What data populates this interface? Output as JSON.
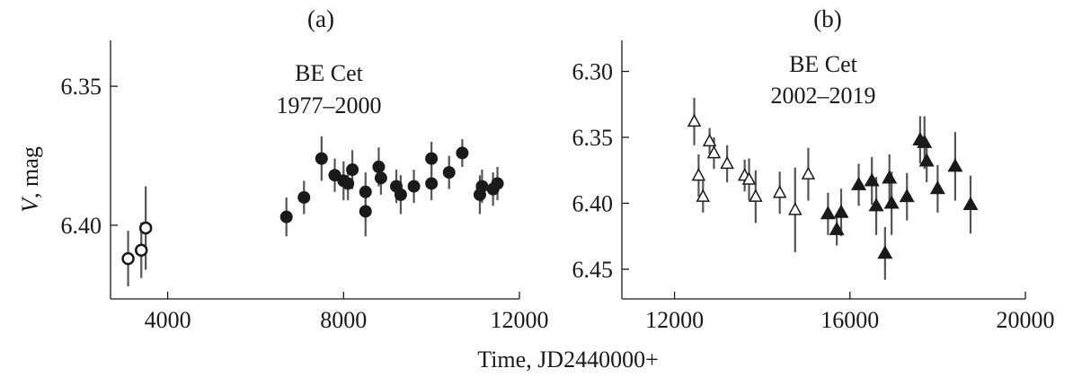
{
  "figure": {
    "xlabel": "Time, JD2440000+",
    "ylabel_var": "V",
    "ylabel_unit": ", mag"
  },
  "chart_data": [
    {
      "type": "scatter",
      "panel_label": "(a)",
      "annotation": [
        "BE Cet",
        "1977–2000"
      ],
      "xlim": [
        2700,
        12000
      ],
      "ylim": [
        6.4265,
        6.3335
      ],
      "y_inverted": true,
      "xticks": [
        4000,
        8000,
        12000
      ],
      "xtick_labels": [
        "4000",
        "8000",
        "12000"
      ],
      "yticks": [
        6.35,
        6.4
      ],
      "ytick_labels": [
        "6.35",
        "6.40"
      ],
      "grid": false,
      "series": [
        {
          "marker": "open-circle",
          "points": [
            {
              "x": 3100,
              "y": 6.412,
              "err": 0.01
            },
            {
              "x": 3400,
              "y": 6.409,
              "err": 0.01
            },
            {
              "x": 3500,
              "y": 6.401,
              "err": 0.015
            }
          ]
        },
        {
          "marker": "filled-circle",
          "points": [
            {
              "x": 6700,
              "y": 6.397,
              "err": 0.007
            },
            {
              "x": 7100,
              "y": 6.39,
              "err": 0.006
            },
            {
              "x": 7500,
              "y": 6.376,
              "err": 0.008
            },
            {
              "x": 7800,
              "y": 6.382,
              "err": 0.006
            },
            {
              "x": 8000,
              "y": 6.384,
              "err": 0.007
            },
            {
              "x": 8100,
              "y": 6.385,
              "err": 0.006
            },
            {
              "x": 8200,
              "y": 6.38,
              "err": 0.007
            },
            {
              "x": 8500,
              "y": 6.388,
              "err": 0.007
            },
            {
              "x": 8500,
              "y": 6.395,
              "err": 0.009
            },
            {
              "x": 8800,
              "y": 6.379,
              "err": 0.007
            },
            {
              "x": 8850,
              "y": 6.383,
              "err": 0.006
            },
            {
              "x": 9200,
              "y": 6.386,
              "err": 0.006
            },
            {
              "x": 9300,
              "y": 6.389,
              "err": 0.007
            },
            {
              "x": 9600,
              "y": 6.386,
              "err": 0.006
            },
            {
              "x": 10000,
              "y": 6.376,
              "err": 0.006
            },
            {
              "x": 10000,
              "y": 6.385,
              "err": 0.006
            },
            {
              "x": 10400,
              "y": 6.381,
              "err": 0.006
            },
            {
              "x": 10700,
              "y": 6.374,
              "err": 0.005
            },
            {
              "x": 11100,
              "y": 6.389,
              "err": 0.007
            },
            {
              "x": 11150,
              "y": 6.386,
              "err": 0.006
            },
            {
              "x": 11400,
              "y": 6.387,
              "err": 0.006
            },
            {
              "x": 11500,
              "y": 6.385,
              "err": 0.006
            }
          ]
        }
      ]
    },
    {
      "type": "scatter",
      "panel_label": "(b)",
      "annotation": [
        "BE Cet",
        "2002–2019"
      ],
      "xlim": [
        10800,
        20000
      ],
      "ylim": [
        6.4725,
        6.2765
      ],
      "y_inverted": true,
      "xticks": [
        12000,
        16000,
        20000
      ],
      "xtick_labels": [
        "12000",
        "16000",
        "20000"
      ],
      "yticks": [
        6.3,
        6.35,
        6.4,
        6.45
      ],
      "ytick_labels": [
        "6.30",
        "6.35",
        "6.40",
        "6.45"
      ],
      "grid": false,
      "series": [
        {
          "marker": "open-triangle",
          "points": [
            {
              "x": 12450,
              "y": 6.338,
              "err": 0.018
            },
            {
              "x": 12550,
              "y": 6.379,
              "err": 0.016
            },
            {
              "x": 12650,
              "y": 6.395,
              "err": 0.012
            },
            {
              "x": 12800,
              "y": 6.353,
              "err": 0.01
            },
            {
              "x": 12900,
              "y": 6.362,
              "err": 0.012
            },
            {
              "x": 13200,
              "y": 6.37,
              "err": 0.014
            },
            {
              "x": 13600,
              "y": 6.379,
              "err": 0.012
            },
            {
              "x": 13700,
              "y": 6.382,
              "err": 0.016
            },
            {
              "x": 13850,
              "y": 6.395,
              "err": 0.02
            },
            {
              "x": 14400,
              "y": 6.392,
              "err": 0.016
            },
            {
              "x": 14750,
              "y": 6.405,
              "err": 0.032
            },
            {
              "x": 15050,
              "y": 6.378,
              "err": 0.02
            }
          ]
        },
        {
          "marker": "filled-triangle",
          "points": [
            {
              "x": 15500,
              "y": 6.408,
              "err": 0.016
            },
            {
              "x": 15700,
              "y": 6.42,
              "err": 0.012
            },
            {
              "x": 15800,
              "y": 6.407,
              "err": 0.018
            },
            {
              "x": 16200,
              "y": 6.386,
              "err": 0.016
            },
            {
              "x": 16500,
              "y": 6.383,
              "err": 0.018
            },
            {
              "x": 16600,
              "y": 6.402,
              "err": 0.022
            },
            {
              "x": 16800,
              "y": 6.438,
              "err": 0.02
            },
            {
              "x": 16900,
              "y": 6.381,
              "err": 0.018
            },
            {
              "x": 16950,
              "y": 6.4,
              "err": 0.024
            },
            {
              "x": 17300,
              "y": 6.395,
              "err": 0.018
            },
            {
              "x": 17600,
              "y": 6.352,
              "err": 0.018
            },
            {
              "x": 17700,
              "y": 6.354,
              "err": 0.02
            },
            {
              "x": 17750,
              "y": 6.368,
              "err": 0.016
            },
            {
              "x": 18000,
              "y": 6.389,
              "err": 0.018
            },
            {
              "x": 18400,
              "y": 6.372,
              "err": 0.026
            },
            {
              "x": 18750,
              "y": 6.401,
              "err": 0.022
            }
          ]
        }
      ]
    }
  ]
}
